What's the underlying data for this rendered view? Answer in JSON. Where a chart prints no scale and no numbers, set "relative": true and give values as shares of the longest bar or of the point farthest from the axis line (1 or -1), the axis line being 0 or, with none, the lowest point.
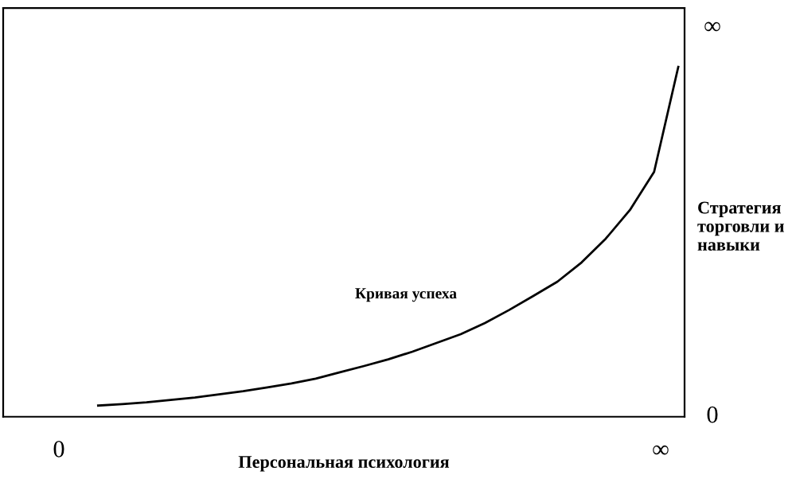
{
  "chart_data": {
    "type": "line",
    "relative": true,
    "xlabel": "Персональная психология",
    "ylabel": "Стратегия торговли и навыки",
    "categories": [
      null,
      null,
      null,
      null,
      null,
      null,
      null,
      null,
      null,
      null,
      null,
      null,
      null,
      null,
      null,
      null,
      null,
      null,
      null,
      null,
      null,
      null,
      null,
      null,
      null
    ],
    "grid": false,
    "marker": "none",
    "line_style": "solid",
    "series": [
      {
        "color": "#000000",
        "values": [
          0.032,
          0.036,
          0.041,
          0.048,
          0.055,
          0.064,
          0.073,
          0.084,
          0.095,
          0.109,
          0.127,
          0.145,
          0.164,
          0.186,
          0.211,
          0.236,
          0.268,
          0.305,
          0.345,
          0.386,
          0.441,
          0.509,
          0.591,
          0.7,
          1
        ]
      }
    ],
    "annotations": [
      "Кривая успеха",
      "0",
      "∞",
      "∞",
      "0"
    ]
  }
}
